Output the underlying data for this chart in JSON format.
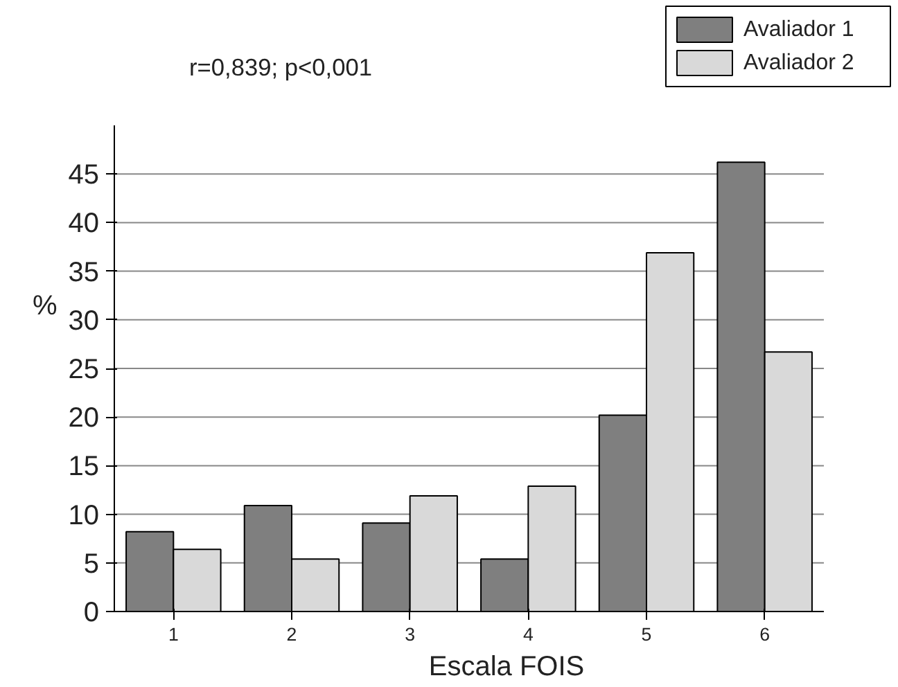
{
  "chart_data": {
    "type": "bar",
    "title": "r=0,839; p<0,001",
    "xlabel": "Escala FOIS",
    "ylabel": "%",
    "categories": [
      "1",
      "2",
      "3",
      "4",
      "5",
      "6"
    ],
    "series": [
      {
        "name": "Avaliador 1",
        "color": "#7f7f7f",
        "values": [
          8.2,
          10.9,
          9.1,
          5.4,
          20.2,
          46.2
        ]
      },
      {
        "name": "Avaliador 2",
        "color": "#d9d9d9",
        "values": [
          6.4,
          5.4,
          11.9,
          12.9,
          36.9,
          26.7
        ]
      }
    ],
    "ylim": [
      0,
      50
    ],
    "yticks": [
      0,
      5,
      10,
      15,
      20,
      25,
      30,
      35,
      40,
      45
    ],
    "grid": "y",
    "legend": "top right"
  }
}
